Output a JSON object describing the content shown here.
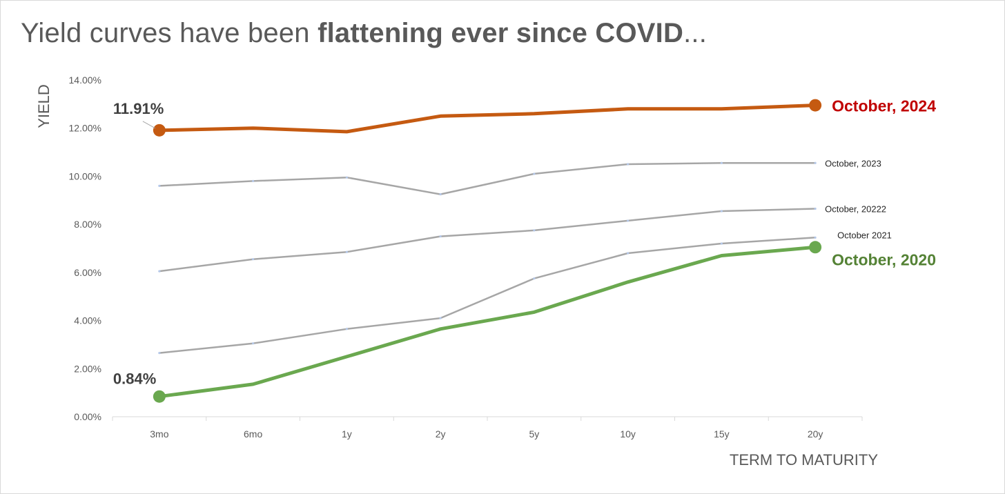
{
  "title": {
    "prefix": "Yield curves have been ",
    "bold": "flattening ever since COVID",
    "suffix": "..."
  },
  "chart_data": {
    "type": "line",
    "title": "Yield curves have been flattening ever since COVID...",
    "xlabel": "TERM TO MATURITY",
    "ylabel": "YIELD",
    "categories": [
      "3mo",
      "6mo",
      "1y",
      "2y",
      "5y",
      "10y",
      "15y",
      "20y"
    ],
    "ylim": [
      0,
      14
    ],
    "yticks": [
      0,
      2,
      4,
      6,
      8,
      10,
      12,
      14
    ],
    "ytick_labels": [
      "0.00%",
      "2.00%",
      "4.00%",
      "6.00%",
      "8.00%",
      "10.00%",
      "12.00%",
      "14.00%"
    ],
    "series": [
      {
        "name": "October, 2023",
        "values": [
          9.6,
          9.8,
          9.95,
          9.25,
          10.1,
          10.5,
          10.55,
          10.55
        ],
        "color": "#a6a6a6",
        "emphasis": false
      },
      {
        "name": "October, 20222",
        "values": [
          6.05,
          6.55,
          6.85,
          7.5,
          7.75,
          8.15,
          8.55,
          8.65
        ],
        "color": "#a6a6a6",
        "emphasis": false
      },
      {
        "name": "October 2021",
        "values": [
          2.65,
          3.05,
          3.65,
          4.1,
          5.75,
          6.8,
          7.2,
          7.45
        ],
        "color": "#a6a6a6",
        "emphasis": false
      },
      {
        "name": "October, 2020",
        "values": [
          0.84,
          1.35,
          2.5,
          3.65,
          4.35,
          5.6,
          6.7,
          7.05
        ],
        "color": "#6aa84f",
        "emphasis": true,
        "label_color": "#548235"
      },
      {
        "name": "October, 2024",
        "values": [
          11.91,
          12.0,
          11.85,
          12.5,
          12.6,
          12.8,
          12.8,
          12.95
        ],
        "color": "#c55a11",
        "emphasis": true,
        "label_color": "#c00000"
      }
    ],
    "annotations": [
      {
        "text": "11.91%",
        "series": "October, 2024",
        "category": "3mo"
      },
      {
        "text": "0.84%",
        "series": "October, 2020",
        "category": "3mo"
      }
    ],
    "grid": false
  }
}
